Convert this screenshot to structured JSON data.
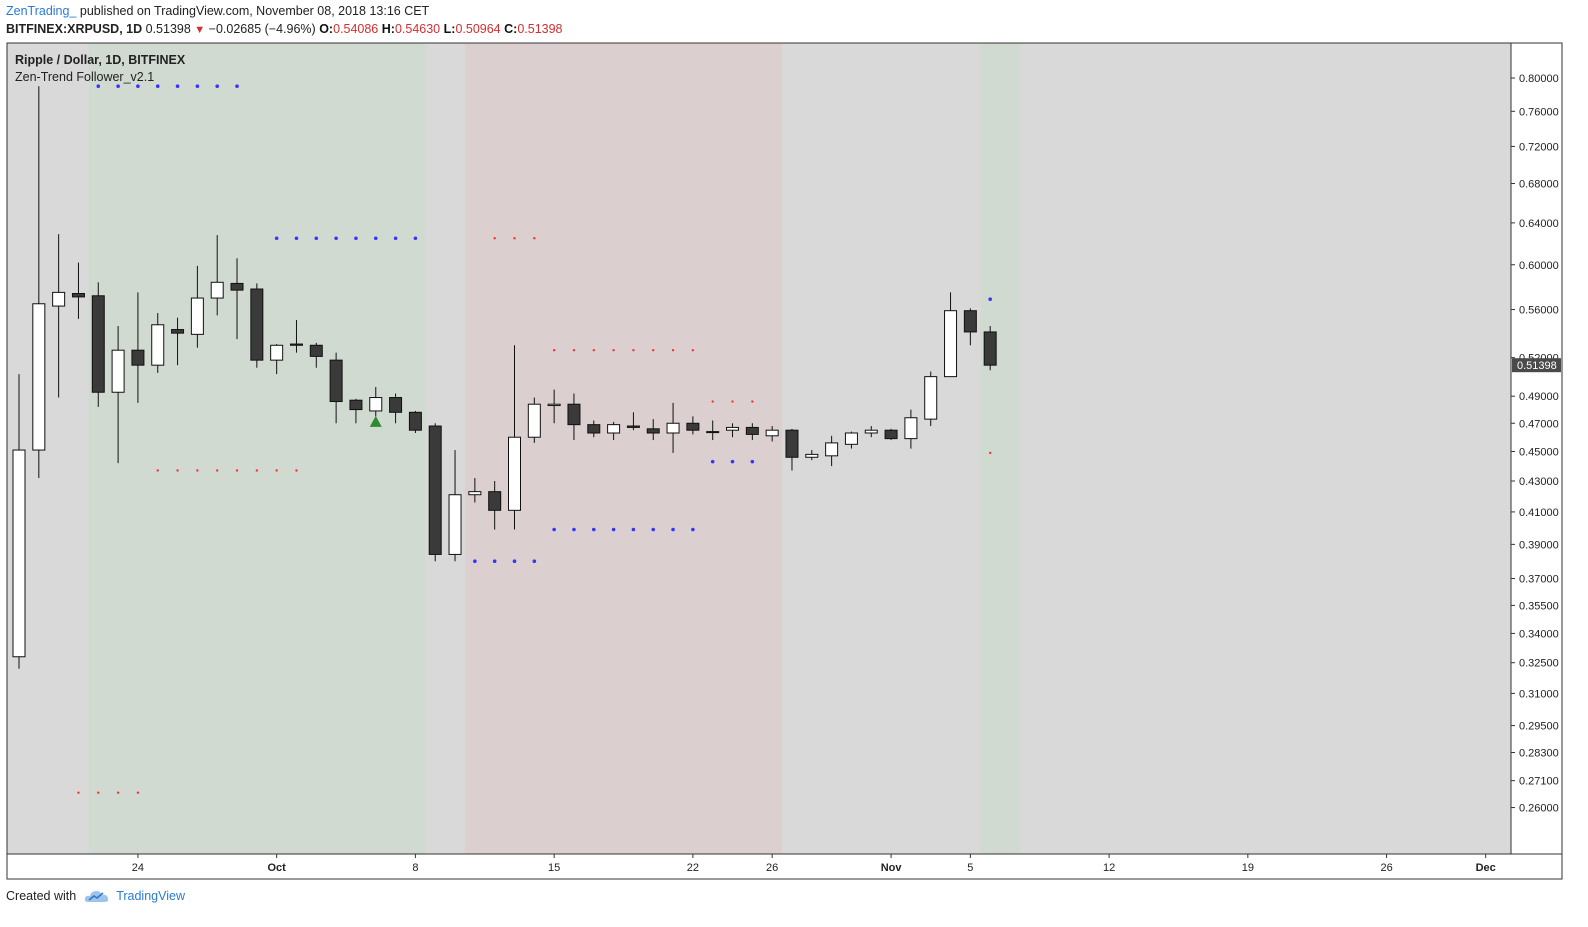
{
  "header": {
    "author": "ZenTrading_",
    "published": "published on TradingView.com, November 08, 2018 13:16 CET",
    "symbol": "BITFINEX:XRPUSD, 1D",
    "last": "0.51398",
    "change": "−0.02685 (−4.96%)",
    "o_label": "O:",
    "o_val": "0.54086",
    "h_label": "H:",
    "h_val": "0.54630",
    "l_label": "L:",
    "l_val": "0.50964",
    "c_label": "C:",
    "c_val": "0.51398"
  },
  "footer": {
    "created_with": "Created with",
    "brand": "TradingView"
  },
  "colors": {
    "plot_bg": "#d9d9d9",
    "bull_zone": "#d1dad1",
    "bear_zone": "#dccfcf",
    "candle_up": "#ffffff",
    "candle_down": "#3a3a3a",
    "dot_blue": "#3535ff",
    "dot_red": "#ff3030",
    "signal_up": "#2e8b2e",
    "price_tag_bg": "#4a4a4a"
  },
  "chart_data": {
    "type": "candlestick",
    "title": "Ripple / Dollar, 1D, BITFINEX",
    "indicator": "Zen-Trend Follower_v2.1",
    "y_scale": "log",
    "ylim": [
      0.25,
      0.82
    ],
    "x_start": "2018-09-18",
    "xlim": [
      "2018-09-18",
      "2018-12-08"
    ],
    "x_ticks": [
      {
        "date": "2018-09-24",
        "label": "24",
        "bold": false
      },
      {
        "date": "2018-10-01",
        "label": "Oct",
        "bold": true
      },
      {
        "date": "2018-10-08",
        "label": "8",
        "bold": false
      },
      {
        "date": "2018-10-15",
        "label": "15",
        "bold": false
      },
      {
        "date": "2018-10-22",
        "label": "22",
        "bold": false
      },
      {
        "date": "2018-10-26",
        "label": "26",
        "bold": false
      },
      {
        "date": "2018-11-01",
        "label": "Nov",
        "bold": true
      },
      {
        "date": "2018-11-05",
        "label": "5",
        "bold": false
      },
      {
        "date": "2018-11-12",
        "label": "12",
        "bold": false
      },
      {
        "date": "2018-11-19",
        "label": "19",
        "bold": false
      },
      {
        "date": "2018-11-26",
        "label": "26",
        "bold": false
      },
      {
        "date": "2018-12-01",
        "label": "Dec",
        "bold": true
      }
    ],
    "y_ticks": [
      "0.80000",
      "0.76000",
      "0.72000",
      "0.68000",
      "0.64000",
      "0.60000",
      "0.56000",
      "0.52000",
      "0.49000",
      "0.47000",
      "0.45000",
      "0.43000",
      "0.41000",
      "0.39000",
      "0.37000",
      "0.35500",
      "0.34000",
      "0.32500",
      "0.31000",
      "0.29500",
      "0.28300",
      "0.27100",
      "0.26000"
    ],
    "last_price": "0.51398",
    "candles": [
      {
        "date": "2018-09-18",
        "o": 0.328,
        "h": 0.507,
        "l": 0.322,
        "c": 0.451
      },
      {
        "date": "2018-09-19",
        "o": 0.451,
        "h": 0.79,
        "l": 0.432,
        "c": 0.565
      },
      {
        "date": "2018-09-20",
        "o": 0.563,
        "h": 0.629,
        "l": 0.489,
        "c": 0.575
      },
      {
        "date": "2018-09-21",
        "o": 0.574,
        "h": 0.602,
        "l": 0.552,
        "c": 0.571
      },
      {
        "date": "2018-09-22",
        "o": 0.572,
        "h": 0.584,
        "l": 0.482,
        "c": 0.493
      },
      {
        "date": "2018-09-23",
        "o": 0.493,
        "h": 0.546,
        "l": 0.442,
        "c": 0.526
      },
      {
        "date": "2018-09-24",
        "o": 0.526,
        "h": 0.575,
        "l": 0.485,
        "c": 0.514
      },
      {
        "date": "2018-09-25",
        "o": 0.514,
        "h": 0.557,
        "l": 0.508,
        "c": 0.547
      },
      {
        "date": "2018-09-26",
        "o": 0.543,
        "h": 0.553,
        "l": 0.514,
        "c": 0.54
      },
      {
        "date": "2018-09-27",
        "o": 0.539,
        "h": 0.599,
        "l": 0.528,
        "c": 0.57
      },
      {
        "date": "2018-09-28",
        "o": 0.57,
        "h": 0.628,
        "l": 0.555,
        "c": 0.584
      },
      {
        "date": "2018-09-29",
        "o": 0.583,
        "h": 0.606,
        "l": 0.535,
        "c": 0.577
      },
      {
        "date": "2018-09-30",
        "o": 0.578,
        "h": 0.583,
        "l": 0.512,
        "c": 0.518
      },
      {
        "date": "2018-10-01",
        "o": 0.518,
        "h": 0.531,
        "l": 0.507,
        "c": 0.53
      },
      {
        "date": "2018-10-02",
        "o": 0.531,
        "h": 0.551,
        "l": 0.524,
        "c": 0.53
      },
      {
        "date": "2018-10-03",
        "o": 0.53,
        "h": 0.532,
        "l": 0.512,
        "c": 0.521
      },
      {
        "date": "2018-10-04",
        "o": 0.518,
        "h": 0.524,
        "l": 0.47,
        "c": 0.486
      },
      {
        "date": "2018-10-05",
        "o": 0.487,
        "h": 0.488,
        "l": 0.47,
        "c": 0.48
      },
      {
        "date": "2018-10-06",
        "o": 0.479,
        "h": 0.497,
        "l": 0.475,
        "c": 0.489
      },
      {
        "date": "2018-10-07",
        "o": 0.489,
        "h": 0.492,
        "l": 0.47,
        "c": 0.478
      },
      {
        "date": "2018-10-08",
        "o": 0.478,
        "h": 0.479,
        "l": 0.463,
        "c": 0.465
      },
      {
        "date": "2018-10-09",
        "o": 0.468,
        "h": 0.47,
        "l": 0.38,
        "c": 0.384
      },
      {
        "date": "2018-10-10",
        "o": 0.384,
        "h": 0.451,
        "l": 0.38,
        "c": 0.421
      },
      {
        "date": "2018-10-11",
        "o": 0.421,
        "h": 0.432,
        "l": 0.416,
        "c": 0.423
      },
      {
        "date": "2018-10-12",
        "o": 0.423,
        "h": 0.43,
        "l": 0.399,
        "c": 0.411
      },
      {
        "date": "2018-10-13",
        "o": 0.411,
        "h": 0.53,
        "l": 0.399,
        "c": 0.46
      },
      {
        "date": "2018-10-14",
        "o": 0.46,
        "h": 0.489,
        "l": 0.456,
        "c": 0.484
      },
      {
        "date": "2018-10-15",
        "o": 0.483,
        "h": 0.495,
        "l": 0.47,
        "c": 0.484
      },
      {
        "date": "2018-10-16",
        "o": 0.484,
        "h": 0.492,
        "l": 0.458,
        "c": 0.469
      },
      {
        "date": "2018-10-17",
        "o": 0.469,
        "h": 0.472,
        "l": 0.46,
        "c": 0.463
      },
      {
        "date": "2018-10-18",
        "o": 0.463,
        "h": 0.471,
        "l": 0.458,
        "c": 0.469
      },
      {
        "date": "2018-10-19",
        "o": 0.468,
        "h": 0.478,
        "l": 0.465,
        "c": 0.467
      },
      {
        "date": "2018-10-20",
        "o": 0.466,
        "h": 0.473,
        "l": 0.458,
        "c": 0.463
      },
      {
        "date": "2018-10-21",
        "o": 0.463,
        "h": 0.485,
        "l": 0.449,
        "c": 0.47
      },
      {
        "date": "2018-10-22",
        "o": 0.47,
        "h": 0.475,
        "l": 0.462,
        "c": 0.465
      },
      {
        "date": "2018-10-23",
        "o": 0.464,
        "h": 0.472,
        "l": 0.458,
        "c": 0.464
      },
      {
        "date": "2018-10-24",
        "o": 0.465,
        "h": 0.47,
        "l": 0.46,
        "c": 0.467
      },
      {
        "date": "2018-10-25",
        "o": 0.467,
        "h": 0.47,
        "l": 0.458,
        "c": 0.462
      },
      {
        "date": "2018-10-26",
        "o": 0.461,
        "h": 0.468,
        "l": 0.457,
        "c": 0.465
      },
      {
        "date": "2018-10-27",
        "o": 0.465,
        "h": 0.466,
        "l": 0.437,
        "c": 0.446
      },
      {
        "date": "2018-10-28",
        "o": 0.446,
        "h": 0.451,
        "l": 0.444,
        "c": 0.448
      },
      {
        "date": "2018-10-29",
        "o": 0.447,
        "h": 0.461,
        "l": 0.44,
        "c": 0.456
      },
      {
        "date": "2018-10-30",
        "o": 0.455,
        "h": 0.464,
        "l": 0.452,
        "c": 0.463
      },
      {
        "date": "2018-10-31",
        "o": 0.463,
        "h": 0.468,
        "l": 0.46,
        "c": 0.465
      },
      {
        "date": "2018-11-01",
        "o": 0.465,
        "h": 0.466,
        "l": 0.458,
        "c": 0.459
      },
      {
        "date": "2018-11-02",
        "o": 0.459,
        "h": 0.48,
        "l": 0.452,
        "c": 0.474
      },
      {
        "date": "2018-11-03",
        "o": 0.473,
        "h": 0.509,
        "l": 0.468,
        "c": 0.505
      },
      {
        "date": "2018-11-04",
        "o": 0.505,
        "h": 0.575,
        "l": 0.505,
        "c": 0.559
      },
      {
        "date": "2018-11-05",
        "o": 0.559,
        "h": 0.561,
        "l": 0.53,
        "c": 0.541
      },
      {
        "date": "2018-11-06",
        "o": 0.541,
        "h": 0.546,
        "l": 0.51,
        "c": 0.514
      }
    ],
    "zones": [
      {
        "type": "bull",
        "from": "2018-09-22",
        "to": "2018-10-08"
      },
      {
        "type": "bear",
        "from": "2018-10-11",
        "to": "2018-10-26"
      },
      {
        "type": "bull",
        "from": "2018-11-06",
        "to": "2018-11-07"
      }
    ],
    "dot_series": [
      {
        "color": "blue",
        "y": 0.79,
        "dates": [
          "2018-09-22",
          "2018-09-23",
          "2018-09-24",
          "2018-09-25",
          "2018-09-26",
          "2018-09-27",
          "2018-09-28",
          "2018-09-29"
        ]
      },
      {
        "color": "blue",
        "y": 0.625,
        "dates": [
          "2018-10-01",
          "2018-10-02",
          "2018-10-03",
          "2018-10-04",
          "2018-10-05",
          "2018-10-06",
          "2018-10-07",
          "2018-10-08"
        ]
      },
      {
        "color": "red",
        "y": 0.437,
        "dates": [
          "2018-09-25",
          "2018-09-26",
          "2018-09-27",
          "2018-09-28",
          "2018-09-29",
          "2018-09-30",
          "2018-10-01",
          "2018-10-02"
        ]
      },
      {
        "color": "red",
        "y": 0.266,
        "dates": [
          "2018-09-21",
          "2018-09-22",
          "2018-09-23",
          "2018-09-24"
        ]
      },
      {
        "color": "red",
        "y": 0.512,
        "dates": [
          "2018-10-04"
        ]
      },
      {
        "color": "red",
        "y": 0.625,
        "dates": [
          "2018-10-12",
          "2018-10-13",
          "2018-10-14"
        ]
      },
      {
        "color": "blue",
        "y": 0.38,
        "dates": [
          "2018-10-11",
          "2018-10-12",
          "2018-10-13",
          "2018-10-14"
        ]
      },
      {
        "color": "red",
        "y": 0.526,
        "dates": [
          "2018-10-15",
          "2018-10-16",
          "2018-10-17",
          "2018-10-18",
          "2018-10-19",
          "2018-10-20",
          "2018-10-21",
          "2018-10-22"
        ]
      },
      {
        "color": "blue",
        "y": 0.399,
        "dates": [
          "2018-10-15",
          "2018-10-16",
          "2018-10-17",
          "2018-10-18",
          "2018-10-19",
          "2018-10-20",
          "2018-10-21",
          "2018-10-22"
        ]
      },
      {
        "color": "red",
        "y": 0.486,
        "dates": [
          "2018-10-23",
          "2018-10-24",
          "2018-10-25"
        ]
      },
      {
        "color": "blue",
        "y": 0.443,
        "dates": [
          "2018-10-23",
          "2018-10-24",
          "2018-10-25"
        ]
      },
      {
        "color": "blue",
        "y": 0.569,
        "dates": [
          "2018-11-06"
        ]
      },
      {
        "color": "red",
        "y": 0.449,
        "dates": [
          "2018-11-06"
        ]
      }
    ],
    "signals": [
      {
        "type": "buy-arrow",
        "date": "2018-10-06",
        "y": 0.471
      }
    ]
  }
}
